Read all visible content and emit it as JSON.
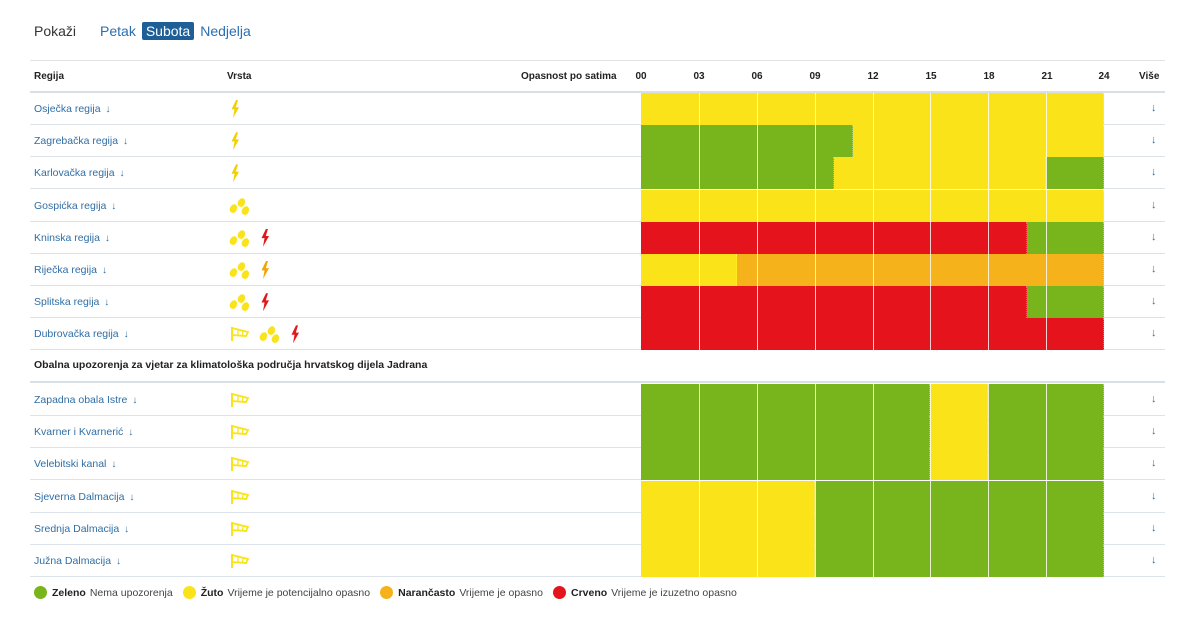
{
  "filters": {
    "label": "Pokaži",
    "days": [
      "Petak",
      "Subota",
      "Nedjelja"
    ],
    "active_day": "Subota"
  },
  "table_header": {
    "region": "Regija",
    "type": "Vrsta",
    "danger_by_hours": "Opasnost po satima",
    "hours": [
      "00",
      "03",
      "06",
      "09",
      "12",
      "15",
      "18",
      "21",
      "24"
    ],
    "more": "Više"
  },
  "hours_range": [
    0,
    24
  ],
  "level_colors": {
    "green": "#78b51d",
    "yellow": "#fae319",
    "orange": "#f5b21a",
    "red": "#e5141c"
  },
  "regions": [
    {
      "name": "Osječka regija",
      "arrow": "↓",
      "types": [
        {
          "icon": "lightning-icon",
          "level": "yellow"
        }
      ],
      "hourly": [
        {
          "from": 0,
          "to": 24,
          "level": "yellow"
        }
      ]
    },
    {
      "name": "Zagrebačka regija",
      "arrow": "↓",
      "types": [
        {
          "icon": "lightning-icon",
          "level": "yellow"
        }
      ],
      "hourly": [
        {
          "from": 0,
          "to": 11,
          "level": "green"
        },
        {
          "from": 11,
          "to": 24,
          "level": "yellow"
        }
      ]
    },
    {
      "name": "Karlovačka regija",
      "arrow": "↓",
      "types": [
        {
          "icon": "lightning-icon",
          "level": "yellow"
        }
      ],
      "hourly": [
        {
          "from": 0,
          "to": 10,
          "level": "green"
        },
        {
          "from": 10,
          "to": 21,
          "level": "yellow"
        },
        {
          "from": 21,
          "to": 24,
          "level": "green"
        }
      ]
    },
    {
      "name": "Gospićka regija",
      "arrow": "↓",
      "types": [
        {
          "icon": "rain-icon",
          "level": "yellow"
        }
      ],
      "hourly": [
        {
          "from": 0,
          "to": 24,
          "level": "yellow"
        }
      ]
    },
    {
      "name": "Kninska regija",
      "arrow": "↓",
      "types": [
        {
          "icon": "rain-icon",
          "level": "yellow"
        },
        {
          "icon": "lightning-icon",
          "level": "red"
        }
      ],
      "hourly": [
        {
          "from": 0,
          "to": 20,
          "level": "red"
        },
        {
          "from": 20,
          "to": 24,
          "level": "green"
        }
      ]
    },
    {
      "name": "Riječka regija",
      "arrow": "↓",
      "types": [
        {
          "icon": "rain-icon",
          "level": "yellow"
        },
        {
          "icon": "lightning-icon",
          "level": "orange"
        }
      ],
      "hourly": [
        {
          "from": 0,
          "to": 5,
          "level": "yellow"
        },
        {
          "from": 5,
          "to": 24,
          "level": "orange"
        }
      ]
    },
    {
      "name": "Splitska regija",
      "arrow": "↓",
      "types": [
        {
          "icon": "rain-icon",
          "level": "yellow"
        },
        {
          "icon": "lightning-icon",
          "level": "red"
        }
      ],
      "hourly": [
        {
          "from": 0,
          "to": 20,
          "level": "red"
        },
        {
          "from": 20,
          "to": 24,
          "level": "green"
        }
      ]
    },
    {
      "name": "Dubrovačka regija",
      "arrow": "↓",
      "types": [
        {
          "icon": "wind-flag-icon",
          "level": "yellow"
        },
        {
          "icon": "rain-icon",
          "level": "yellow"
        },
        {
          "icon": "lightning-icon",
          "level": "red"
        }
      ],
      "hourly": [
        {
          "from": 0,
          "to": 24,
          "level": "red"
        }
      ]
    }
  ],
  "coastal_section": {
    "title": "Obalna upozorenja za vjetar za klimatološka područja hrvatskog dijela Jadrana",
    "regions": [
      {
        "name": "Zapadna obala Istre",
        "arrow": "↓",
        "types": [
          {
            "icon": "wind-flag-icon",
            "level": "yellow"
          }
        ],
        "hourly": [
          {
            "from": 0,
            "to": 15,
            "level": "green"
          },
          {
            "from": 15,
            "to": 18,
            "level": "yellow"
          },
          {
            "from": 18,
            "to": 24,
            "level": "green"
          }
        ]
      },
      {
        "name": "Kvarner i Kvarnerić",
        "arrow": "↓",
        "types": [
          {
            "icon": "wind-flag-icon",
            "level": "yellow"
          }
        ],
        "hourly": [
          {
            "from": 0,
            "to": 15,
            "level": "green"
          },
          {
            "from": 15,
            "to": 18,
            "level": "yellow"
          },
          {
            "from": 18,
            "to": 24,
            "level": "green"
          }
        ]
      },
      {
        "name": "Velebitski kanal",
        "arrow": "↓",
        "types": [
          {
            "icon": "wind-flag-icon",
            "level": "yellow"
          }
        ],
        "hourly": [
          {
            "from": 0,
            "to": 15,
            "level": "green"
          },
          {
            "from": 15,
            "to": 18,
            "level": "yellow"
          },
          {
            "from": 18,
            "to": 24,
            "level": "green"
          }
        ]
      },
      {
        "name": "Sjeverna Dalmacija",
        "arrow": "↓",
        "types": [
          {
            "icon": "wind-flag-icon",
            "level": "yellow"
          }
        ],
        "hourly": [
          {
            "from": 0,
            "to": 9,
            "level": "yellow"
          },
          {
            "from": 9,
            "to": 24,
            "level": "green"
          }
        ]
      },
      {
        "name": "Srednja Dalmacija",
        "arrow": "↓",
        "types": [
          {
            "icon": "wind-flag-icon",
            "level": "yellow"
          }
        ],
        "hourly": [
          {
            "from": 0,
            "to": 9,
            "level": "yellow"
          },
          {
            "from": 9,
            "to": 24,
            "level": "green"
          }
        ]
      },
      {
        "name": "Južna Dalmacija",
        "arrow": "↓",
        "types": [
          {
            "icon": "wind-flag-icon",
            "level": "yellow"
          }
        ],
        "hourly": [
          {
            "from": 0,
            "to": 9,
            "level": "yellow"
          },
          {
            "from": 9,
            "to": 24,
            "level": "green"
          }
        ]
      }
    ]
  },
  "more_arrow": "↓",
  "legend": [
    {
      "level": "green",
      "name": "Zeleno",
      "description": "Nema upozorenja"
    },
    {
      "level": "yellow",
      "name": "Žuto",
      "description": "Vrijeme je potencijalno opasno"
    },
    {
      "level": "orange",
      "name": "Narančasto",
      "description": "Vrijeme je opasno"
    },
    {
      "level": "red",
      "name": "Crveno",
      "description": "Vrijeme je izuzetno opasno"
    }
  ]
}
